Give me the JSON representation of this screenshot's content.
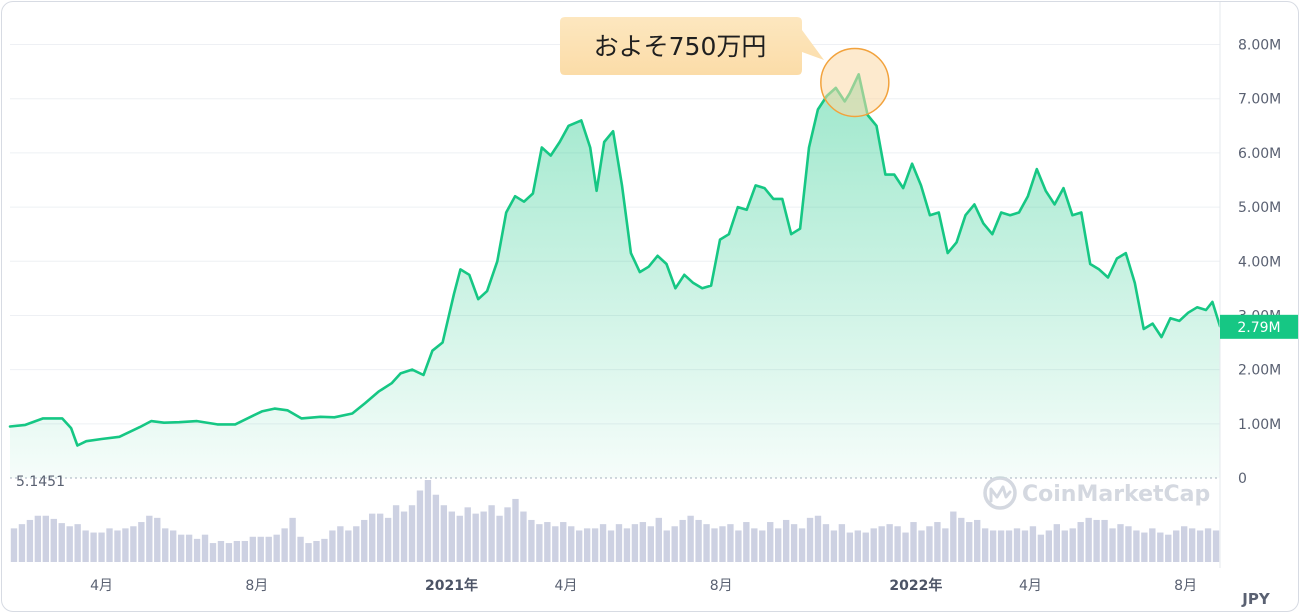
{
  "chart_data": {
    "type": "line",
    "y_axis": {
      "ticks": [
        {
          "value": 0,
          "label": "0"
        },
        {
          "value": 1000000,
          "label": "1.00M"
        },
        {
          "value": 2000000,
          "label": "2.00M"
        },
        {
          "value": 3000000,
          "label": "3.00M"
        },
        {
          "value": 4000000,
          "label": "4.00M"
        },
        {
          "value": 5000000,
          "label": "5.00M"
        },
        {
          "value": 6000000,
          "label": "6.00M"
        },
        {
          "value": 7000000,
          "label": "7.00M"
        },
        {
          "value": 8000000,
          "label": "8.00M"
        }
      ],
      "ylim": [
        0,
        8600000
      ],
      "unit": "JPY"
    },
    "x_axis": {
      "ticks": [
        {
          "date": "2020-04-01",
          "label": "4月",
          "bold": false
        },
        {
          "date": "2020-08-01",
          "label": "8月",
          "bold": false
        },
        {
          "date": "2021-01-01",
          "label": "2021年",
          "bold": true
        },
        {
          "date": "2021-04-01",
          "label": "4月",
          "bold": false
        },
        {
          "date": "2021-08-01",
          "label": "8月",
          "bold": false
        },
        {
          "date": "2022-01-01",
          "label": "2022年",
          "bold": true
        },
        {
          "date": "2022-04-01",
          "label": "4月",
          "bold": false
        },
        {
          "date": "2022-08-01",
          "label": "8月",
          "bold": false
        }
      ],
      "xlim": [
        "2020-01-20",
        "2022-08-28"
      ]
    },
    "series": [
      {
        "color": "#16c784",
        "points": [
          [
            "2020-01-20",
            950000
          ],
          [
            "2020-02-01",
            980000
          ],
          [
            "2020-02-15",
            1100000
          ],
          [
            "2020-03-01",
            1100000
          ],
          [
            "2020-03-08",
            920000
          ],
          [
            "2020-03-13",
            600000
          ],
          [
            "2020-03-20",
            680000
          ],
          [
            "2020-04-01",
            720000
          ],
          [
            "2020-04-15",
            760000
          ],
          [
            "2020-05-01",
            940000
          ],
          [
            "2020-05-10",
            1050000
          ],
          [
            "2020-05-20",
            1020000
          ],
          [
            "2020-06-01",
            1030000
          ],
          [
            "2020-06-15",
            1050000
          ],
          [
            "2020-07-01",
            990000
          ],
          [
            "2020-07-15",
            990000
          ],
          [
            "2020-07-29",
            1150000
          ],
          [
            "2020-08-05",
            1230000
          ],
          [
            "2020-08-15",
            1280000
          ],
          [
            "2020-08-25",
            1250000
          ],
          [
            "2020-09-05",
            1100000
          ],
          [
            "2020-09-20",
            1130000
          ],
          [
            "2020-10-01",
            1120000
          ],
          [
            "2020-10-15",
            1190000
          ],
          [
            "2020-10-25",
            1380000
          ],
          [
            "2020-11-05",
            1600000
          ],
          [
            "2020-11-15",
            1750000
          ],
          [
            "2020-11-22",
            1930000
          ],
          [
            "2020-12-01",
            2000000
          ],
          [
            "2020-12-10",
            1900000
          ],
          [
            "2020-12-17",
            2350000
          ],
          [
            "2020-12-25",
            2500000
          ],
          [
            "2021-01-03",
            3400000
          ],
          [
            "2021-01-08",
            3850000
          ],
          [
            "2021-01-15",
            3750000
          ],
          [
            "2021-01-22",
            3300000
          ],
          [
            "2021-01-29",
            3450000
          ],
          [
            "2021-02-06",
            4000000
          ],
          [
            "2021-02-13",
            4900000
          ],
          [
            "2021-02-20",
            5200000
          ],
          [
            "2021-02-27",
            5100000
          ],
          [
            "2021-03-06",
            5250000
          ],
          [
            "2021-03-13",
            6100000
          ],
          [
            "2021-03-20",
            5950000
          ],
          [
            "2021-03-27",
            6200000
          ],
          [
            "2021-04-03",
            6500000
          ],
          [
            "2021-04-13",
            6600000
          ],
          [
            "2021-04-20",
            6100000
          ],
          [
            "2021-04-25",
            5300000
          ],
          [
            "2021-05-01",
            6200000
          ],
          [
            "2021-05-08",
            6400000
          ],
          [
            "2021-05-15",
            5400000
          ],
          [
            "2021-05-22",
            4150000
          ],
          [
            "2021-05-29",
            3800000
          ],
          [
            "2021-06-05",
            3900000
          ],
          [
            "2021-06-12",
            4100000
          ],
          [
            "2021-06-19",
            3950000
          ],
          [
            "2021-06-26",
            3500000
          ],
          [
            "2021-07-03",
            3750000
          ],
          [
            "2021-07-10",
            3600000
          ],
          [
            "2021-07-17",
            3500000
          ],
          [
            "2021-07-24",
            3550000
          ],
          [
            "2021-07-31",
            4400000
          ],
          [
            "2021-08-07",
            4500000
          ],
          [
            "2021-08-14",
            5000000
          ],
          [
            "2021-08-21",
            4950000
          ],
          [
            "2021-08-28",
            5400000
          ],
          [
            "2021-09-04",
            5350000
          ],
          [
            "2021-09-11",
            5150000
          ],
          [
            "2021-09-18",
            5150000
          ],
          [
            "2021-09-25",
            4500000
          ],
          [
            "2021-10-02",
            4600000
          ],
          [
            "2021-10-09",
            6100000
          ],
          [
            "2021-10-16",
            6800000
          ],
          [
            "2021-10-23",
            7050000
          ],
          [
            "2021-10-30",
            7200000
          ],
          [
            "2021-11-06",
            6950000
          ],
          [
            "2021-11-10",
            7100000
          ],
          [
            "2021-11-17",
            7450000
          ],
          [
            "2021-11-24",
            6700000
          ],
          [
            "2021-12-01",
            6500000
          ],
          [
            "2021-12-08",
            5600000
          ],
          [
            "2021-12-15",
            5600000
          ],
          [
            "2021-12-22",
            5350000
          ],
          [
            "2021-12-29",
            5800000
          ],
          [
            "2022-01-05",
            5400000
          ],
          [
            "2022-01-12",
            4850000
          ],
          [
            "2022-01-19",
            4900000
          ],
          [
            "2022-01-26",
            4150000
          ],
          [
            "2022-02-02",
            4350000
          ],
          [
            "2022-02-09",
            4850000
          ],
          [
            "2022-02-16",
            5050000
          ],
          [
            "2022-02-23",
            4700000
          ],
          [
            "2022-03-02",
            4500000
          ],
          [
            "2022-03-09",
            4900000
          ],
          [
            "2022-03-16",
            4850000
          ],
          [
            "2022-03-23",
            4900000
          ],
          [
            "2022-03-30",
            5200000
          ],
          [
            "2022-04-06",
            5700000
          ],
          [
            "2022-04-13",
            5300000
          ],
          [
            "2022-04-20",
            5050000
          ],
          [
            "2022-04-27",
            5350000
          ],
          [
            "2022-05-04",
            4850000
          ],
          [
            "2022-05-11",
            4900000
          ],
          [
            "2022-05-18",
            3950000
          ],
          [
            "2022-05-25",
            3850000
          ],
          [
            "2022-06-01",
            3700000
          ],
          [
            "2022-06-08",
            4050000
          ],
          [
            "2022-06-15",
            4150000
          ],
          [
            "2022-06-22",
            3600000
          ],
          [
            "2022-06-29",
            2750000
          ],
          [
            "2022-07-06",
            2850000
          ],
          [
            "2022-07-13",
            2600000
          ],
          [
            "2022-07-20",
            2950000
          ],
          [
            "2022-07-27",
            2900000
          ],
          [
            "2022-08-03",
            3050000
          ],
          [
            "2022-08-10",
            3150000
          ],
          [
            "2022-08-17",
            3100000
          ],
          [
            "2022-08-22",
            3250000
          ],
          [
            "2022-08-28",
            2800000
          ]
        ]
      }
    ],
    "current_price": {
      "value": 2790000,
      "label": "2.79M"
    },
    "annotation": {
      "text": "およそ750万円",
      "date": "2021-11-14",
      "value": 7300000
    },
    "volume": {
      "scale_label": "5.1451",
      "color": "#cdd1e2",
      "values": [
        32,
        36,
        40,
        44,
        44,
        41,
        37,
        34,
        36,
        30,
        28,
        28,
        32,
        30,
        32,
        34,
        38,
        44,
        42,
        32,
        30,
        26,
        26,
        22,
        26,
        18,
        20,
        18,
        20,
        20,
        24,
        24,
        24,
        26,
        32,
        42,
        24,
        18,
        20,
        22,
        30,
        34,
        30,
        34,
        40,
        46,
        46,
        42,
        54,
        48,
        54,
        68,
        78,
        64,
        54,
        48,
        44,
        52,
        46,
        48,
        54,
        44,
        52,
        60,
        48,
        40,
        36,
        38,
        34,
        38,
        34,
        30,
        32,
        32,
        36,
        30,
        36,
        32,
        36,
        38,
        34,
        42,
        30,
        34,
        40,
        44,
        40,
        36,
        32,
        34,
        36,
        30,
        38,
        32,
        30,
        38,
        32,
        40,
        36,
        32,
        42,
        44,
        36,
        30,
        36,
        28,
        30,
        28,
        32,
        34,
        36,
        34,
        28,
        38,
        30,
        34,
        38,
        32,
        48,
        42,
        38,
        40,
        32,
        30,
        30,
        30,
        32,
        30,
        34,
        26,
        30,
        36,
        30,
        32,
        38,
        42,
        40,
        40,
        32,
        36,
        34,
        30,
        28,
        32,
        28,
        26,
        30,
        34,
        32,
        30,
        32,
        30
      ]
    }
  },
  "ui": {
    "currency_label": "JPY",
    "watermark": "CoinMarketCap"
  }
}
